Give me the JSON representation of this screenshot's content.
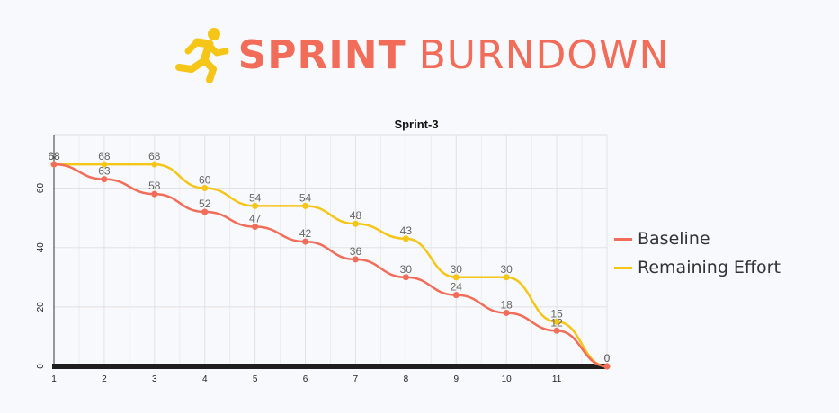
{
  "header": {
    "title_bold": "SPRINT",
    "title_light": "BURNDOWN",
    "icon": "runner-icon",
    "color": "#f26c5a",
    "icon_color": "#f5c518"
  },
  "chart_data": {
    "type": "line",
    "title": "Sprint-3",
    "categories": [
      "1",
      "2",
      "3",
      "4",
      "5",
      "6",
      "7",
      "8",
      "9",
      "10",
      "11",
      ""
    ],
    "xlabel": "",
    "ylabel": "",
    "ylim": [
      0,
      78
    ],
    "yticks": [
      0,
      20,
      40,
      60
    ],
    "grid": true,
    "legend_position": "right",
    "series": [
      {
        "name": "Baseline",
        "color": "#f26c5a",
        "values": [
          68,
          63,
          58,
          52,
          47,
          42,
          36,
          30,
          24,
          18,
          12,
          0
        ]
      },
      {
        "name": "Remaining Effort",
        "color": "#f5c518",
        "values": [
          68,
          68,
          68,
          60,
          54,
          54,
          48,
          43,
          30,
          30,
          15,
          0
        ]
      }
    ]
  }
}
